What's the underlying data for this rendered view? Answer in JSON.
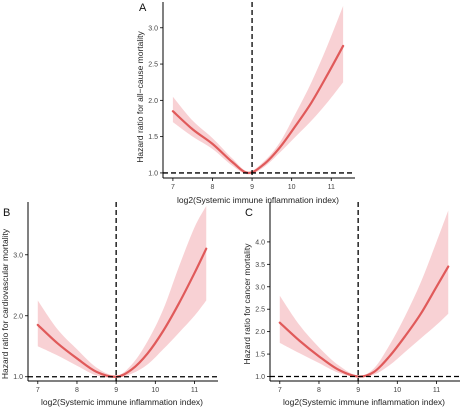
{
  "style": {
    "curve_color": "#e05a5a",
    "band_color": "#f7c9cc",
    "axis_color": "#000000",
    "reference_line_color": "#000000"
  },
  "chart_data": [
    {
      "panel": "A",
      "type": "line",
      "xlabel": "log2(Systemic immune inflammation index)",
      "ylabel": "Hazard ratio for all−cause mortality",
      "xlim": [
        6.75,
        11.6
      ],
      "ylim": [
        0.93,
        3.3
      ],
      "x_ticks": [
        7,
        8,
        9,
        10,
        11
      ],
      "y_ticks": [
        1.0,
        1.5,
        2.0,
        2.5,
        3.0
      ],
      "y_tick_labels": [
        "1.0",
        "1.5",
        "2.0",
        "2.5",
        "3.0"
      ],
      "reference_x": 9,
      "reference_y": 1.0,
      "series": [
        {
          "x": [
            7.0,
            7.5,
            8.0,
            8.5,
            8.9,
            9.3,
            9.7,
            10.1,
            10.5,
            10.9,
            11.3
          ],
          "y": [
            1.85,
            1.6,
            1.4,
            1.15,
            1.0,
            1.12,
            1.35,
            1.65,
            1.97,
            2.35,
            2.75
          ],
          "lower": [
            1.7,
            1.5,
            1.33,
            1.1,
            0.98,
            1.08,
            1.28,
            1.5,
            1.72,
            1.97,
            2.25
          ],
          "upper": [
            2.05,
            1.72,
            1.48,
            1.2,
            1.02,
            1.16,
            1.42,
            1.82,
            2.25,
            2.75,
            3.3
          ]
        }
      ]
    },
    {
      "panel": "B",
      "type": "line",
      "xlabel": "log2(Systemic immune inflammation index)",
      "ylabel": "Hazard ratio for cardiovascular mortality",
      "xlim": [
        6.75,
        11.6
      ],
      "ylim": [
        0.93,
        3.8
      ],
      "x_ticks": [
        7,
        8,
        9,
        10,
        11
      ],
      "y_ticks": [
        1.0,
        2.0,
        3.0
      ],
      "y_tick_labels": [
        "1.0",
        "2.0",
        "3.0"
      ],
      "reference_x": 9,
      "reference_y": 1.0,
      "series": [
        {
          "x": [
            7.0,
            7.5,
            8.0,
            8.5,
            9.0,
            9.4,
            9.8,
            10.2,
            10.6,
            11.0,
            11.3
          ],
          "y": [
            1.85,
            1.55,
            1.3,
            1.08,
            1.0,
            1.12,
            1.38,
            1.75,
            2.2,
            2.7,
            3.1
          ],
          "lower": [
            1.5,
            1.35,
            1.18,
            1.02,
            0.98,
            1.05,
            1.2,
            1.45,
            1.72,
            2.0,
            2.25
          ],
          "upper": [
            2.25,
            1.78,
            1.45,
            1.15,
            1.02,
            1.2,
            1.58,
            2.1,
            2.8,
            3.45,
            3.8
          ]
        }
      ]
    },
    {
      "panel": "C",
      "type": "line",
      "xlabel": "log2(Systemic immune inflammation index)",
      "ylabel": "Hazard ratio for cancer mortality",
      "xlim": [
        6.75,
        11.6
      ],
      "ylim": [
        0.9,
        4.8
      ],
      "x_ticks": [
        7,
        8,
        9,
        10,
        11
      ],
      "y_ticks": [
        1.0,
        1.5,
        2.0,
        2.5,
        3.0,
        3.5,
        4.0
      ],
      "y_tick_labels": [
        "1.0",
        "1.5",
        "2.0",
        "2.5",
        "3.0",
        "3.5",
        "4.0"
      ],
      "reference_x": 9,
      "reference_y": 1.0,
      "series": [
        {
          "x": [
            7.0,
            7.5,
            8.0,
            8.5,
            9.0,
            9.4,
            9.8,
            10.2,
            10.6,
            11.0,
            11.3
          ],
          "y": [
            2.2,
            1.8,
            1.45,
            1.15,
            1.0,
            1.1,
            1.45,
            1.9,
            2.4,
            3.0,
            3.45
          ],
          "lower": [
            1.75,
            1.52,
            1.3,
            1.08,
            0.98,
            1.04,
            1.25,
            1.55,
            1.85,
            2.15,
            2.4
          ],
          "upper": [
            2.8,
            2.15,
            1.65,
            1.25,
            1.02,
            1.18,
            1.7,
            2.35,
            3.1,
            4.0,
            4.7
          ]
        }
      ]
    }
  ]
}
